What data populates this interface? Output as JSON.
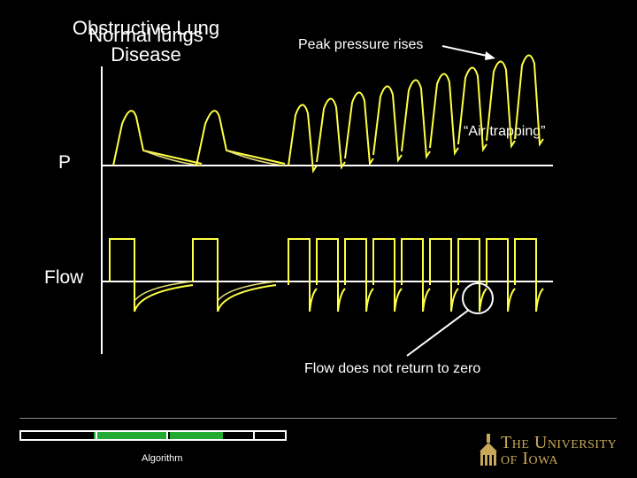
{
  "title": {
    "line_a": "Obstructive Lung",
    "line_b": "Normal lungs",
    "line_c": "Disease"
  },
  "labels": {
    "pressure_axis": "P",
    "flow_axis": "Flow"
  },
  "annotations": {
    "peak_pressure": "Peak pressure rises",
    "air_trapping": "“Air trapping”",
    "flow_not_zero": "Flow does not return to zero"
  },
  "footer": {
    "algorithm_label": "Algorithm",
    "logo_line1": "The University",
    "logo_line2": "of Iowa"
  },
  "colors": {
    "waveform": "#ffff44",
    "waveform_faint": "#e8e07a",
    "nav_active": "#22aa33",
    "logo_gold": "#c9a85a"
  }
}
